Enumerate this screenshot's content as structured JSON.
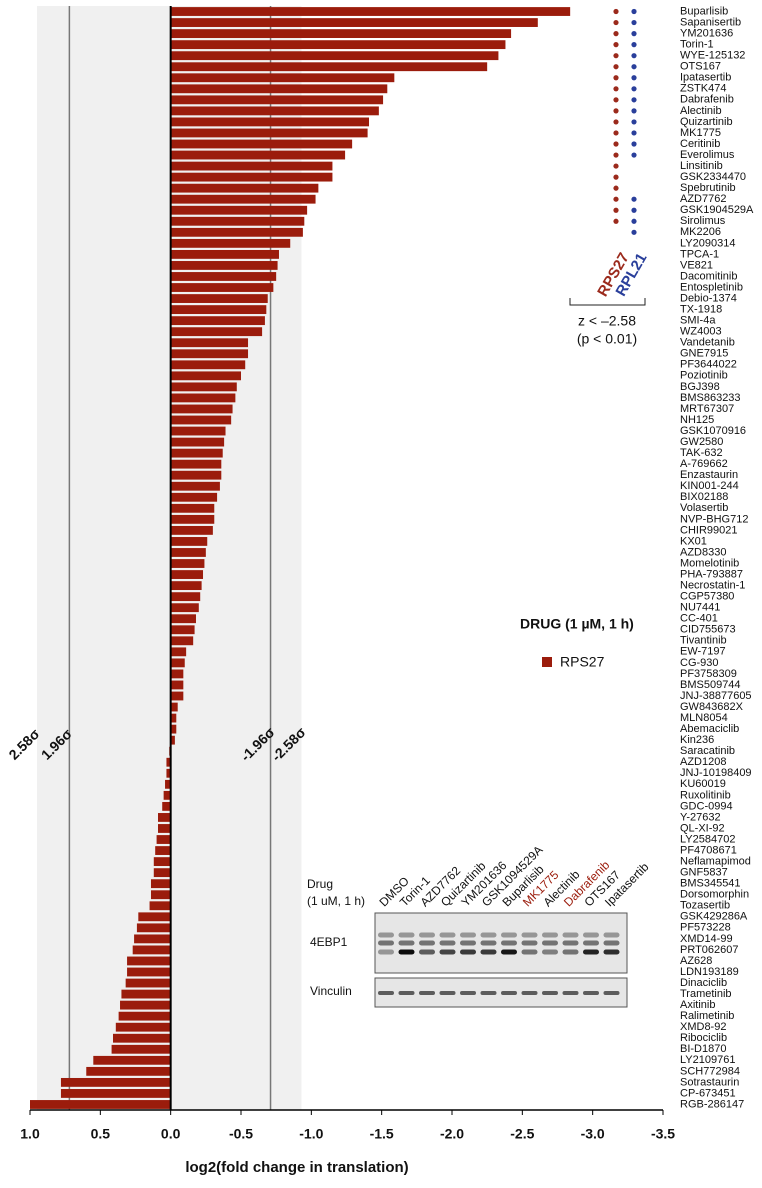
{
  "chart_data": {
    "type": "bar",
    "orientation": "horizontal",
    "x_label": "log2(fold change in translation)",
    "xlim": [
      1.0,
      -3.5
    ],
    "xticks": [
      {
        "value": 1,
        "label": "1.0"
      },
      0.5,
      {
        "value": 0,
        "label": "0.0"
      },
      -0.5,
      {
        "value": -1,
        "label": "-1.0"
      },
      -1.5,
      {
        "value": -2,
        "label": "-2.0"
      },
      -2.5,
      {
        "value": -3,
        "label": "-3.0"
      },
      -3.5
    ],
    "categories": [
      "Buparlisib",
      "Sapanisertib",
      "YM201636",
      "Torin-1",
      "WYE-125132",
      "OTS167",
      "Ipatasertib",
      "ZSTK474",
      "Dabrafenib",
      "Alectinib",
      "Quizartinib",
      "MK1775",
      "Ceritinib",
      "Everolimus",
      "Linsitinib",
      "GSK2334470",
      "Spebrutinib",
      "AZD7762",
      "GSK1904529A",
      "Sirolimus",
      "MK2206",
      "LY2090314",
      "TPCA-1",
      "VE821",
      "Dacomitinib",
      "Entospletinib",
      "Debio-1374",
      "TX-1918",
      "SMI-4a",
      "WZ4003",
      "Vandetanib",
      "GNE7915",
      "PF3644022",
      "Poziotinib",
      "BGJ398",
      "BMS863233",
      "MRT67307",
      "NH125",
      "GSK1070916",
      "GW2580",
      "TAK-632",
      "A-769662",
      "Enzastaurin",
      "KIN001-244",
      "BIX02188",
      "Volasertib",
      "NVP-BHG712",
      "CHIR99021",
      "KX01",
      "AZD8330",
      "Momelotinib",
      "PHA-793887",
      "Necrostatin-1",
      "CGP57380",
      "NU7441",
      "CC-401",
      "CID755673",
      "Tivantinib",
      "EW-7197",
      "CG-930",
      "PF3758309",
      "BMS509744",
      "JNJ-38877605",
      "GW843682X",
      "MLN8054",
      "Abemaciclib",
      "Kin236",
      "Saracatinib",
      "AZD1208",
      "JNJ-10198409",
      "KU60019",
      "Ruxolitinib",
      "GDC-0994",
      "Y-27632",
      "QL-XI-92",
      "LY2584702",
      "PF4708671",
      "Neflamapimod",
      "GNF5837",
      "BMS345541",
      "Dorsomorphin",
      "Tozasertib",
      "GSK429286A",
      "PF573228",
      "XMD14-99",
      "PRT062607",
      "AZ628",
      "LDN193189",
      "Dinaciclib",
      "Trametinib",
      "Axitinib",
      "Ralimetinib",
      "XMD8-92",
      "Ribociclib",
      "BI-D1870",
      "LY2109761",
      "SCH772984",
      "Sotrastaurin",
      "CP-673451",
      "RGB-286147"
    ],
    "series": [
      {
        "name": "RPS27",
        "color": "#9b1c0c",
        "values": [
          -2.84,
          -2.61,
          -2.42,
          -2.38,
          -2.33,
          -2.25,
          -1.59,
          -1.54,
          -1.51,
          -1.48,
          -1.41,
          -1.4,
          -1.29,
          -1.24,
          -1.15,
          -1.15,
          -1.05,
          -1.03,
          -0.97,
          -0.95,
          -0.94,
          -0.85,
          -0.77,
          -0.76,
          -0.75,
          -0.73,
          -0.69,
          -0.68,
          -0.67,
          -0.65,
          -0.55,
          -0.55,
          -0.53,
          -0.5,
          -0.47,
          -0.46,
          -0.44,
          -0.43,
          -0.39,
          -0.38,
          -0.37,
          -0.36,
          -0.36,
          -0.35,
          -0.33,
          -0.31,
          -0.31,
          -0.3,
          -0.26,
          -0.25,
          -0.24,
          -0.23,
          -0.22,
          -0.21,
          -0.2,
          -0.18,
          -0.17,
          -0.16,
          -0.11,
          -0.1,
          -0.09,
          -0.09,
          -0.09,
          -0.05,
          -0.04,
          -0.04,
          -0.03,
          0.01,
          0.03,
          0.03,
          0.04,
          0.05,
          0.06,
          0.09,
          0.09,
          0.1,
          0.11,
          0.12,
          0.12,
          0.14,
          0.14,
          0.15,
          0.23,
          0.24,
          0.26,
          0.27,
          0.31,
          0.31,
          0.32,
          0.35,
          0.36,
          0.37,
          0.39,
          0.41,
          0.42,
          0.55,
          0.6,
          0.78,
          0.78,
          1.0
        ]
      }
    ],
    "thresholds": [
      {
        "value": 0.95,
        "label": "2.58σ"
      },
      {
        "value": 0.72,
        "label": "1.96σ"
      },
      {
        "value": -0.71,
        "label": "-1.96σ"
      },
      {
        "value": -0.93,
        "label": "-2.58σ"
      }
    ],
    "shaded_range": [
      0.95,
      -0.93
    ],
    "legend_title": "DRUG (1 µM, 1 h)",
    "hits": [
      {
        "name": "RPS27",
        "color": "#9b2a1c",
        "drugs": [
          "Buparlisib",
          "Sapanisertib",
          "YM201636",
          "Torin-1",
          "WYE-125132",
          "OTS167",
          "Ipatasertib",
          "ZSTK474",
          "Dabrafenib",
          "Alectinib",
          "Quizartinib",
          "MK1775",
          "Ceritinib",
          "Everolimus",
          "Linsitinib",
          "GSK2334470",
          "Spebrutinib",
          "AZD7762",
          "GSK1904529A",
          "Sirolimus"
        ]
      },
      {
        "name": "RPL21",
        "color": "#2a3f9b",
        "drugs": [
          "Buparlisib",
          "Sapanisertib",
          "YM201636",
          "Torin-1",
          "WYE-125132",
          "OTS167",
          "Ipatasertib",
          "ZSTK474",
          "Dabrafenib",
          "Alectinib",
          "Quizartinib",
          "MK1775",
          "Ceritinib",
          "Everolimus",
          "AZD7762",
          "GSK1904529A",
          "Sirolimus",
          "MK2206"
        ]
      }
    ],
    "hits_note": [
      "z < –2.58",
      "(p < 0.01)"
    ]
  },
  "inset": {
    "drug_label": [
      "Drug",
      "(1 uM, 1 h)"
    ],
    "lanes": [
      {
        "name": "DMSO"
      },
      {
        "name": "Torin-1"
      },
      {
        "name": "AZD7762"
      },
      {
        "name": "Quizartinib"
      },
      {
        "name": "YM201636"
      },
      {
        "name": "GSK1094529A"
      },
      {
        "name": "Buparlisib"
      },
      {
        "name": "MK1775",
        "color": "#9b1c0c"
      },
      {
        "name": "Alectinib"
      },
      {
        "name": "Dabrafenib",
        "color": "#9b1c0c"
      },
      {
        "name": "OTS167"
      },
      {
        "name": "Ipatasertib"
      }
    ],
    "rows": [
      "4EBP1",
      "Vinculin"
    ]
  }
}
